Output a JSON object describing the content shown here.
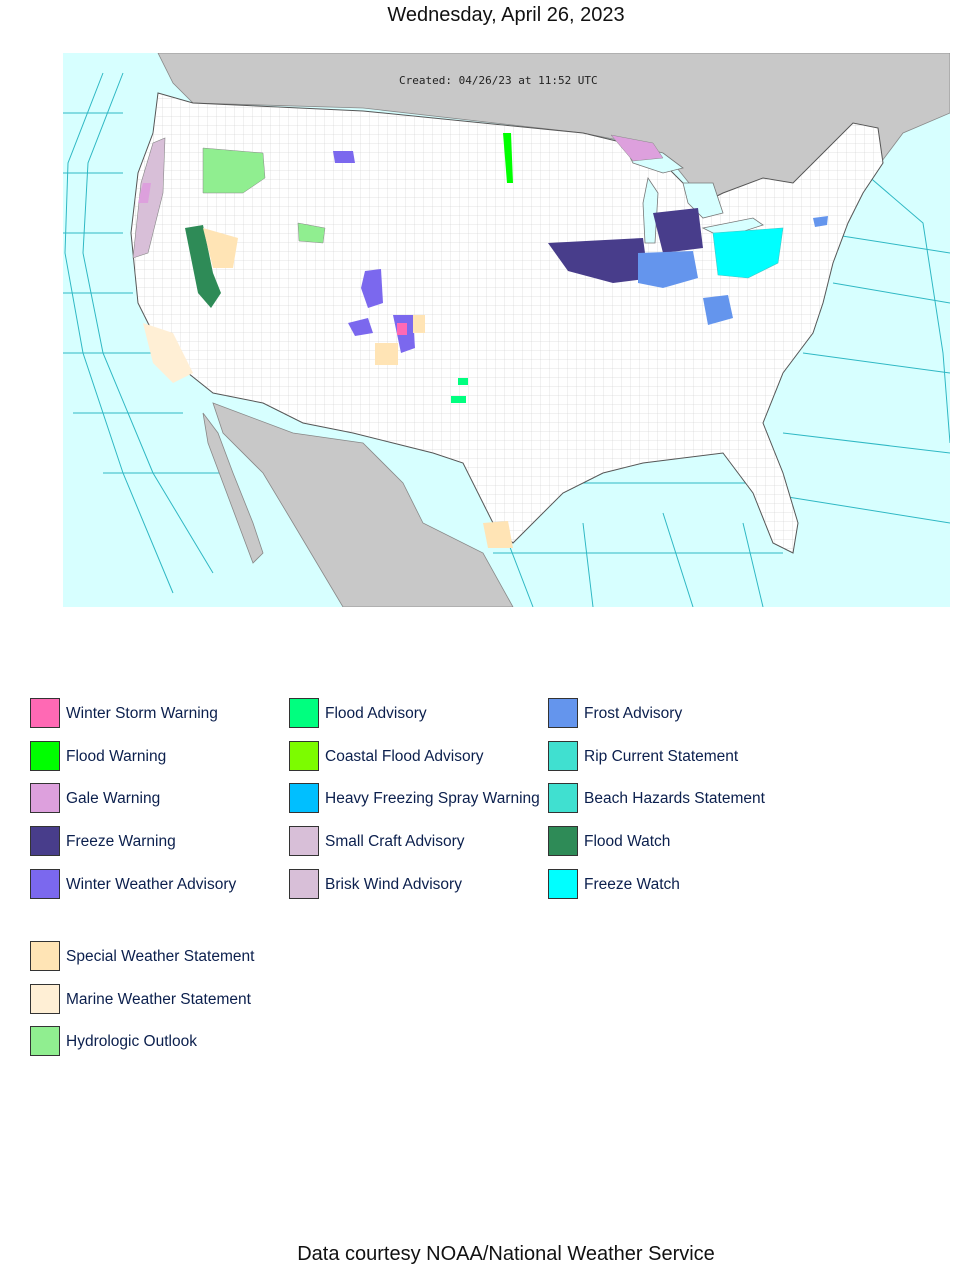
{
  "page": {
    "date": "Wednesday, April 26, 2023",
    "footer": "Data courtesy NOAA/National Weather Service"
  },
  "map": {
    "created": "Created: 04/26/23 at 11:52 UTC",
    "colors": {
      "ocean": "#d7ffff",
      "land_us": "#ffffff",
      "land_other": "#c8c8c8",
      "borders": "#8a8a8a",
      "marine_zones": "#2fb8c4"
    }
  },
  "legend": {
    "col1": [
      {
        "label": "Winter Storm Warning",
        "color": "#ff69b4"
      },
      {
        "label": "Flood Warning",
        "color": "#00ff00"
      },
      {
        "label": "Gale Warning",
        "color": "#dda0dd"
      },
      {
        "label": "Freeze Warning",
        "color": "#483d8b"
      },
      {
        "label": "Winter Weather Advisory",
        "color": "#7b68ee"
      }
    ],
    "col2": [
      {
        "label": "Flood Advisory",
        "color": "#00ff7f"
      },
      {
        "label": "Coastal Flood Advisory",
        "color": "#7cfc00"
      },
      {
        "label": "Heavy Freezing Spray Warning",
        "color": "#00bfff"
      },
      {
        "label": "Small Craft Advisory",
        "color": "#d8bfd8"
      },
      {
        "label": "Brisk Wind Advisory",
        "color": "#d8bfd8"
      }
    ],
    "col3": [
      {
        "label": "Frost Advisory",
        "color": "#6495ed"
      },
      {
        "label": "Rip Current Statement",
        "color": "#40e0d0"
      },
      {
        "label": "Beach Hazards Statement",
        "color": "#40e0d0"
      },
      {
        "label": "Flood Watch",
        "color": "#2e8b57"
      },
      {
        "label": "Freeze Watch",
        "color": "#00ffff"
      }
    ],
    "col4": [
      {
        "label": "Special Weather Statement",
        "color": "#ffe4b5"
      },
      {
        "label": "Marine Weather Statement",
        "color": "#ffefd5"
      },
      {
        "label": "Hydrologic Outlook",
        "color": "#90ee90"
      }
    ]
  }
}
